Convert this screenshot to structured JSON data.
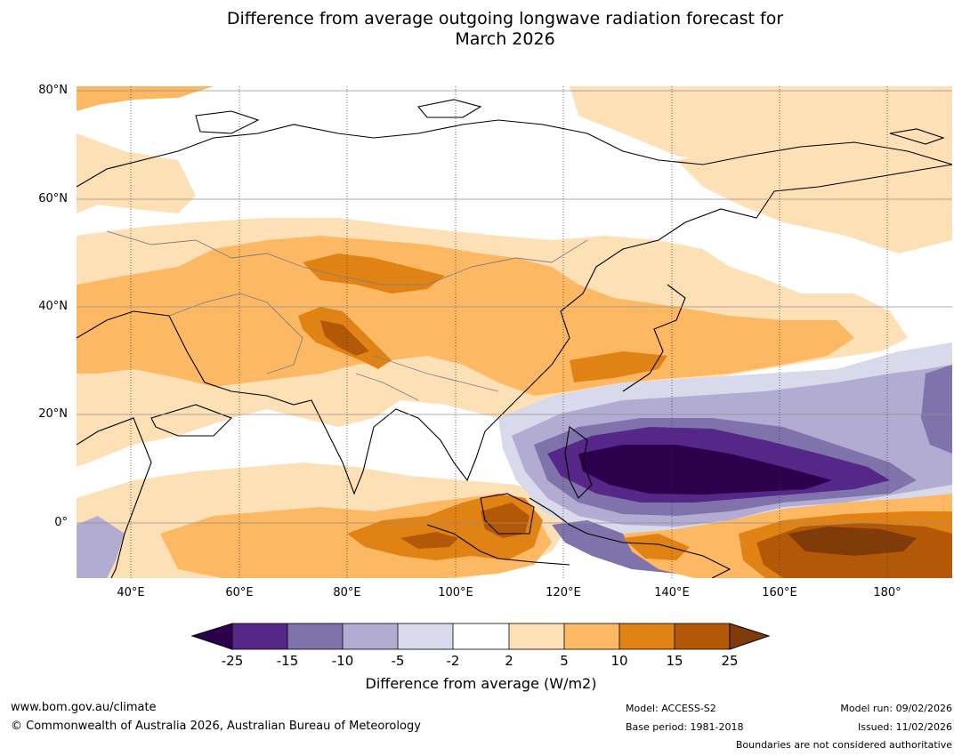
{
  "title": {
    "line1": "Difference from average outgoing longwave radiation forecast for",
    "line2": "March 2026"
  },
  "map": {
    "latitude_labels": [
      "80°N",
      "60°N",
      "40°N",
      "20°N",
      "0°"
    ],
    "longitude_labels": [
      "40°E",
      "60°E",
      "80°E",
      "100°E",
      "120°E",
      "140°E",
      "160°E",
      "180°"
    ],
    "extent": {
      "lon_min": 30,
      "lon_max": 192,
      "lat_min": -10,
      "lat_max": 81
    },
    "regions": [
      {
        "name": "arctic-light-orange",
        "bin": "2-5"
      },
      {
        "name": "europe-light-orange",
        "bin": "2-5"
      },
      {
        "name": "central-asia-orange",
        "bin": "5-10"
      },
      {
        "name": "tibet-dark-orange",
        "bin": "10-15"
      },
      {
        "name": "china-orange",
        "bin": "5-10"
      },
      {
        "name": "maritime-dark-orange",
        "bin": "10-15"
      },
      {
        "name": "west-pacific-purple",
        "bin": "-15 to -25"
      },
      {
        "name": "central-pacific-brown",
        "bin": ">15"
      }
    ]
  },
  "colorbar": {
    "ticks": [
      "-25",
      "-15",
      "-10",
      "-5",
      "-2",
      "2",
      "5",
      "10",
      "15",
      "25"
    ],
    "colors": {
      "under": "#2d004b",
      "bins": [
        "#542788",
        "#8073ac",
        "#b2abd2",
        "#d8daeb",
        "#ffffff",
        "#fee0b6",
        "#fdb863",
        "#e08214",
        "#b35806"
      ],
      "over": "#7f3b08"
    },
    "label": "Difference from average (W/m2)"
  },
  "footer": {
    "website": "www.bom.gov.au/climate",
    "copyright": "© Commonwealth of Australia 2026, Australian Bureau of Meteorology",
    "model": "Model: ACCESS-S2",
    "base_period": "Base period: 1981-2018",
    "model_run": "Model run: 09/02/2026",
    "issued": "Issued: 11/02/2026",
    "disclaimer": "Boundaries are not considered authoritative"
  }
}
